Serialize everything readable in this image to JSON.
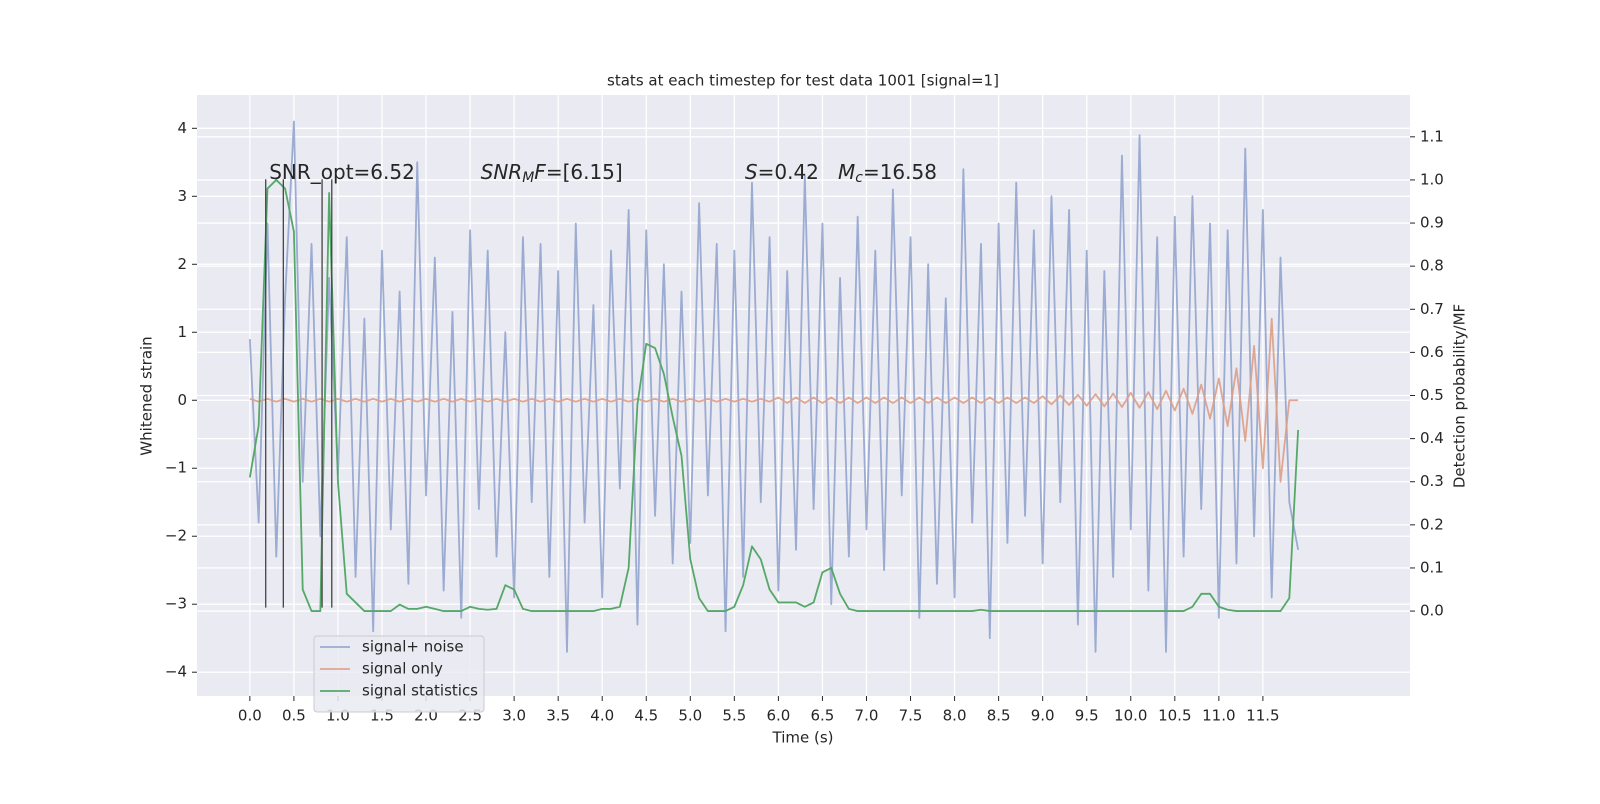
{
  "chart_data": {
    "type": "line",
    "title": "stats at each timestep for test data 1001 [signal=1]",
    "xlabel": "Time (s)",
    "ylabel": "Whitened strain",
    "y2label": "Detection probability/MF",
    "xlim": [
      -0.6,
      13.17
    ],
    "ylim": [
      -4.35,
      4.49
    ],
    "y2lim": [
      -0.197,
      1.197
    ],
    "xticks": [
      {
        "value": 0,
        "label": "0.0"
      },
      0.5,
      {
        "value": 1,
        "label": "1.0"
      },
      1.5,
      {
        "value": 2,
        "label": "2.0"
      },
      2.5,
      {
        "value": 3,
        "label": "3.0"
      },
      3.5,
      {
        "value": 4,
        "label": "4.0"
      },
      4.5,
      {
        "value": 5,
        "label": "5.0"
      },
      5.5,
      {
        "value": 6,
        "label": "6.0"
      },
      6.5,
      {
        "value": 7,
        "label": "7.0"
      },
      7.5,
      {
        "value": 8,
        "label": "8.0"
      },
      8.5,
      {
        "value": 9,
        "label": "9.0"
      },
      9.5,
      {
        "value": 10,
        "label": "10.0"
      },
      10.5,
      {
        "value": 11,
        "label": "11.0"
      },
      11.5
    ],
    "yticks": [
      {
        "value": -4,
        "label": "−4"
      },
      {
        "value": -3,
        "label": "−3"
      },
      {
        "value": -2,
        "label": "−2"
      },
      {
        "value": -1,
        "label": "−1"
      },
      0,
      1,
      2,
      3,
      4
    ],
    "y2ticks": [
      {
        "value": 0,
        "label": "0.0"
      },
      0.1,
      0.2,
      0.3,
      0.4,
      0.5,
      0.6,
      0.7,
      0.8,
      0.9,
      {
        "value": 1,
        "label": "1.0"
      },
      1.1
    ],
    "grid": true,
    "legend": "lower left",
    "x": [
      0,
      0.1,
      0.2,
      0.3,
      0.4,
      0.5,
      0.6,
      0.7,
      0.8,
      0.9,
      1,
      1.1,
      1.2,
      1.3,
      1.4,
      1.5,
      1.6,
      1.7,
      1.8,
      1.9,
      2,
      2.1,
      2.2,
      2.3,
      2.4,
      2.5,
      2.6,
      2.7,
      2.8,
      2.9,
      3,
      3.1,
      3.2,
      3.3,
      3.4,
      3.5,
      3.6,
      3.7,
      3.8,
      3.9,
      4,
      4.1,
      4.2,
      4.3,
      4.4,
      4.5,
      4.6,
      4.7,
      4.8,
      4.9,
      5,
      5.1,
      5.2,
      5.3,
      5.4,
      5.5,
      5.6,
      5.7,
      5.8,
      5.9,
      6,
      6.1,
      6.2,
      6.3,
      6.4,
      6.5,
      6.6,
      6.7,
      6.8,
      6.9,
      7,
      7.1,
      7.2,
      7.3,
      7.4,
      7.5,
      7.6,
      7.7,
      7.8,
      7.9,
      8,
      8.1,
      8.2,
      8.3,
      8.4,
      8.5,
      8.6,
      8.7,
      8.8,
      8.9,
      9,
      9.1,
      9.2,
      9.3,
      9.4,
      9.5,
      9.6,
      9.7,
      9.8,
      9.9,
      10,
      10.1,
      10.2,
      10.3,
      10.4,
      10.5,
      10.6,
      10.7,
      10.8,
      10.9,
      11,
      11.1,
      11.2,
      11.3,
      11.4,
      11.5,
      11.6,
      11.7,
      11.8,
      11.9
    ],
    "series": [
      {
        "name": "signal+ noise",
        "color": "#8da0cb",
        "opacity": 0.85,
        "values": [
          0.9,
          -1.8,
          2.6,
          -2.3,
          1.5,
          4.1,
          -1.2,
          2.3,
          -2.0,
          1.8,
          -1.1,
          2.4,
          -2.6,
          1.2,
          -3.4,
          2.2,
          -1.9,
          1.6,
          -2.7,
          3.5,
          -1.4,
          2.1,
          -2.8,
          1.3,
          -3.2,
          2.5,
          -1.6,
          2.2,
          -2.3,
          1.0,
          -2.9,
          2.4,
          -1.5,
          2.3,
          -2.6,
          1.9,
          -3.7,
          2.6,
          -1.8,
          1.4,
          -2.9,
          2.2,
          -1.3,
          2.8,
          -3.3,
          2.5,
          -1.7,
          2.0,
          -2.4,
          1.6,
          -2.1,
          2.9,
          -1.4,
          2.3,
          -3.4,
          2.2,
          -2.6,
          3.2,
          -1.5,
          2.4,
          -2.8,
          1.9,
          -2.2,
          3.3,
          -1.6,
          2.6,
          -3.0,
          1.8,
          -2.3,
          2.7,
          -1.9,
          2.2,
          -2.5,
          3.1,
          -1.4,
          2.4,
          -3.2,
          2.0,
          -2.7,
          1.5,
          -2.9,
          3.4,
          -1.8,
          2.3,
          -3.5,
          2.6,
          -2.1,
          3.2,
          -1.7,
          2.5,
          -2.4,
          3.0,
          -1.5,
          2.8,
          -3.3,
          2.2,
          -3.7,
          1.9,
          -2.6,
          3.6,
          -1.9,
          3.9,
          -2.8,
          2.4,
          -3.7,
          2.7,
          -2.3,
          3.0,
          -1.6,
          2.6,
          -3.2,
          2.5,
          -2.4,
          3.7,
          -2.0,
          2.8,
          -2.9,
          2.1,
          -1.5,
          -2.2
        ]
      },
      {
        "name": "signal only",
        "color": "#dd9e87",
        "opacity": 0.9,
        "values": [
          0.02,
          -0.02,
          0.02,
          -0.02,
          0.02,
          -0.02,
          0.02,
          -0.02,
          0.02,
          -0.02,
          0.02,
          -0.02,
          0.02,
          -0.02,
          0.02,
          -0.02,
          0.02,
          -0.02,
          0.02,
          -0.02,
          0.02,
          -0.02,
          0.02,
          -0.02,
          0.02,
          -0.02,
          0.02,
          -0.02,
          0.02,
          -0.02,
          0.02,
          -0.02,
          0.02,
          -0.02,
          0.02,
          -0.02,
          0.02,
          -0.02,
          0.02,
          -0.02,
          0.02,
          -0.02,
          0.02,
          -0.02,
          0.02,
          -0.02,
          0.02,
          -0.02,
          0.02,
          -0.02,
          0.02,
          -0.02,
          0.02,
          -0.02,
          0.02,
          -0.02,
          0.02,
          -0.02,
          0.02,
          -0.02,
          0.04,
          -0.04,
          0.04,
          -0.04,
          0.04,
          -0.04,
          0.04,
          -0.04,
          0.04,
          -0.04,
          0.04,
          -0.04,
          0.04,
          -0.04,
          0.04,
          -0.04,
          0.04,
          -0.04,
          0.04,
          -0.04,
          0.04,
          -0.04,
          0.04,
          -0.04,
          0.04,
          -0.04,
          0.04,
          -0.04,
          0.04,
          -0.04,
          0.06,
          -0.06,
          0.07,
          -0.07,
          0.08,
          -0.08,
          0.09,
          -0.09,
          0.1,
          -0.1,
          0.11,
          -0.11,
          0.12,
          -0.13,
          0.14,
          -0.15,
          0.17,
          -0.2,
          0.23,
          -0.27,
          0.32,
          -0.38,
          0.47,
          -0.6,
          0.8,
          -1.0,
          1.2,
          -1.2,
          0,
          0
        ]
      },
      {
        "name": "signal statistics",
        "color": "#55a868",
        "opacity": 1,
        "axis": "y2",
        "values": [
          0.31,
          0.43,
          0.98,
          1.0,
          0.98,
          0.88,
          0.05,
          0.0,
          0.0,
          0.97,
          0.3,
          0.04,
          0.02,
          0.0,
          0.0,
          0.0,
          0.0,
          0.015,
          0.005,
          0.005,
          0.01,
          0.005,
          0.0,
          0.0,
          0.0,
          0.01,
          0.005,
          0.003,
          0.005,
          0.06,
          0.05,
          0.005,
          0.0,
          0.0,
          0.0,
          0.0,
          0.0,
          0.0,
          0.0,
          0.0,
          0.005,
          0.005,
          0.01,
          0.1,
          0.48,
          0.62,
          0.61,
          0.55,
          0.45,
          0.36,
          0.12,
          0.03,
          0.0,
          0.0,
          0.0,
          0.01,
          0.06,
          0.15,
          0.12,
          0.05,
          0.02,
          0.02,
          0.02,
          0.01,
          0.02,
          0.09,
          0.1,
          0.04,
          0.005,
          0.0,
          0.0,
          0.0,
          0.0,
          0.0,
          0.0,
          0.0,
          0.0,
          0.0,
          0.0,
          0.0,
          0.0,
          0.0,
          0.0,
          0.003,
          0.0,
          0.0,
          0.0,
          0.0,
          0.0,
          0.0,
          0.0,
          0.0,
          0.0,
          0.0,
          0.0,
          0.0,
          0.0,
          0.0,
          0.0,
          0.0,
          0.0,
          0.0,
          0.0,
          0.0,
          0.0,
          0.0,
          0.0,
          0.01,
          0.04,
          0.04,
          0.01,
          0.003,
          0.0,
          0.0,
          0.0,
          0.0,
          0.0,
          0.0,
          0.03,
          0.42
        ]
      }
    ],
    "vlines": {
      "color": "#444444",
      "x": [
        0.18,
        0.38,
        0.82,
        0.93
      ],
      "ymin": -3.05,
      "ymax": 3.25
    },
    "annotations": [
      {
        "x": 0.22,
        "y": 3.34,
        "parts": [
          {
            "text": "SNR_opt=6.52"
          }
        ]
      },
      {
        "x": 2.62,
        "y": 3.34,
        "parts": [
          {
            "text": "SNR",
            "italic": true
          },
          {
            "text": "M",
            "italic": true,
            "sub": true
          },
          {
            "text": "F",
            "italic": true
          },
          {
            "text": "=[6.15]"
          }
        ]
      },
      {
        "x": 5.62,
        "y": 3.34,
        "parts": [
          {
            "text": "S",
            "italic": true
          },
          {
            "text": "=0.42   "
          },
          {
            "text": "M",
            "italic": true
          },
          {
            "text": "c",
            "italic": true,
            "sub": true
          },
          {
            "text": "=16.58"
          }
        ]
      }
    ]
  }
}
